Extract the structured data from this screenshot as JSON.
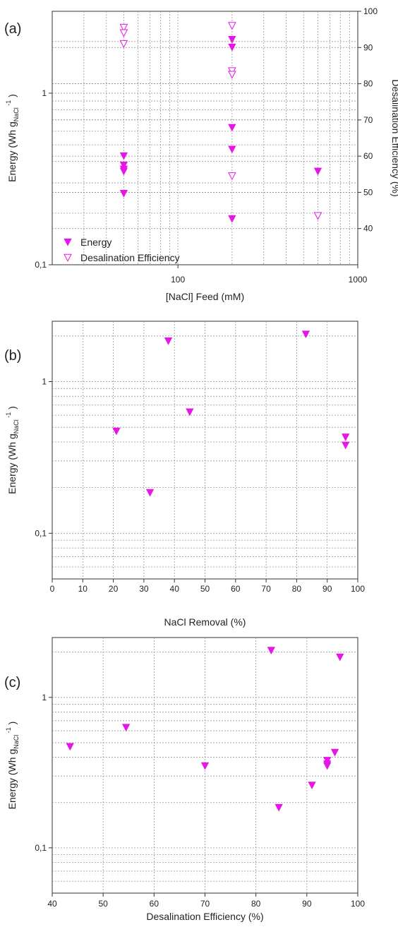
{
  "chart_data": [
    {
      "panel_label": "(a)",
      "type": "scatter",
      "xlabel": "[NaCl] Feed (mM)",
      "ylabel_main": "Energy (Wh g",
      "ylabel_sub": "NaCl",
      "ylabel_sup": "-1",
      "ylabel_close": ")",
      "y2label": "Desalination Efficiency (%)",
      "xscale": "log",
      "yscale": "log",
      "xlim": [
        20,
        1000
      ],
      "ylim": [
        0.1,
        3
      ],
      "y2lim": [
        30,
        100
      ],
      "grid": true,
      "legend_position": "bottom-left",
      "x_ticks": [
        100,
        1000
      ],
      "x_tick_labels": [
        "100",
        "1000"
      ],
      "y_ticks": [
        0.1,
        1
      ],
      "y_tick_labels": [
        "0,1",
        "1"
      ],
      "y2_ticks": [
        40,
        50,
        60,
        70,
        80,
        90,
        100
      ],
      "y2_tick_labels": [
        "40",
        "50",
        "60",
        "70",
        "80",
        "90",
        "100"
      ],
      "series": [
        {
          "name": "Energy",
          "marker": "filled-triangle-down",
          "color": "#e617e6",
          "axis": "left",
          "x": [
            50,
            50,
            50,
            50,
            50,
            200,
            200,
            200,
            200,
            200,
            600
          ],
          "y": [
            0.43,
            0.38,
            0.36,
            0.35,
            0.26,
            2.05,
            1.85,
            0.63,
            0.47,
            0.185,
            0.35
          ]
        },
        {
          "name": "Desalination Efficiency",
          "marker": "open-triangle-down",
          "color": "#e617e6",
          "axis": "right",
          "x": [
            50,
            50,
            50,
            200,
            200,
            200,
            200,
            600
          ],
          "y": [
            95.5,
            94,
            91,
            96,
            83.5,
            82.5,
            54.5,
            43.5
          ],
          "y_extra_note": ""
        }
      ]
    },
    {
      "panel_label": "(b)",
      "type": "scatter",
      "xlabel": "NaCl Removal (%)",
      "ylabel_main": "Energy (Wh g",
      "ylabel_sub": "NaCl",
      "ylabel_sup": "-1",
      "ylabel_close": ")",
      "xscale": "linear",
      "yscale": "log",
      "xlim": [
        0,
        100
      ],
      "ylim": [
        0.05,
        2.5
      ],
      "grid": true,
      "x_ticks": [
        0,
        10,
        20,
        30,
        40,
        50,
        60,
        70,
        80,
        90,
        100
      ],
      "x_tick_labels": [
        "0",
        "10",
        "20",
        "30",
        "40",
        "50",
        "60",
        "70",
        "80",
        "90",
        "100"
      ],
      "y_ticks": [
        0.1,
        1
      ],
      "y_tick_labels": [
        "0,1",
        "1"
      ],
      "series": [
        {
          "marker": "filled-triangle-down",
          "color": "#e617e6",
          "x": [
            21,
            32,
            38,
            45,
            83,
            96,
            96
          ],
          "y": [
            0.47,
            0.185,
            1.85,
            0.63,
            2.05,
            0.43,
            0.38
          ]
        }
      ]
    },
    {
      "panel_label": "(c)",
      "type": "scatter",
      "xlabel": "Desalination Efficiency (%)",
      "ylabel_main": "Energy (Wh g",
      "ylabel_sub": "NaCl",
      "ylabel_sup": "-1",
      "ylabel_close": ")",
      "xscale": "linear",
      "yscale": "log",
      "xlim": [
        40,
        100
      ],
      "ylim": [
        0.05,
        2.5
      ],
      "grid": true,
      "x_ticks": [
        40,
        50,
        60,
        70,
        80,
        90,
        100
      ],
      "x_tick_labels": [
        "40",
        "50",
        "60",
        "70",
        "80",
        "90",
        "100"
      ],
      "y_ticks": [
        0.1,
        1
      ],
      "y_tick_labels": [
        "0,1",
        "1"
      ],
      "series": [
        {
          "marker": "filled-triangle-down",
          "color": "#e617e6",
          "x": [
            43.5,
            54.5,
            70,
            83,
            84.5,
            91,
            94,
            94,
            94,
            95.5,
            96.5
          ],
          "y": [
            0.47,
            0.63,
            0.35,
            2.05,
            0.185,
            0.26,
            0.38,
            0.36,
            0.35,
            0.43,
            1.85
          ]
        }
      ]
    }
  ]
}
